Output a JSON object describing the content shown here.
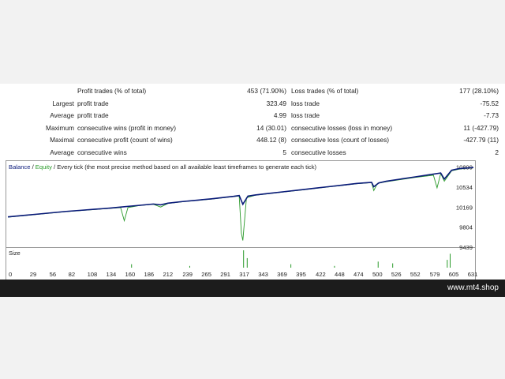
{
  "stats": {
    "rows": [
      {
        "c1": "",
        "c2": "Profit trades (% of total)",
        "c3": "453 (71.90%)",
        "c4": "Loss trades (% of total)",
        "c5": "177 (28.10%)"
      },
      {
        "c1": "Largest",
        "c2": "profit trade",
        "c3": "323.49",
        "c4": "loss trade",
        "c5": "-75.52"
      },
      {
        "c1": "Average",
        "c2": "profit trade",
        "c3": "4.99",
        "c4": "loss trade",
        "c5": "-7.73"
      },
      {
        "c1": "Maximum",
        "c2": "consecutive wins (profit in money)",
        "c3": "14 (30.01)",
        "c4": "consecutive losses (loss in money)",
        "c5": "11 (-427.79)"
      },
      {
        "c1": "Maximal",
        "c2": "consecutive profit (count of wins)",
        "c3": "448.12 (8)",
        "c4": "consecutive loss (count of losses)",
        "c5": "-427.79 (11)"
      },
      {
        "c1": "Average",
        "c2": "consecutive wins",
        "c3": "5",
        "c4": "consecutive losses",
        "c5": "2"
      }
    ]
  },
  "chart": {
    "legend_balance": "Balance",
    "legend_sep1": " / ",
    "legend_equity": "Equity",
    "legend_rest": " / Every tick (the most precise method based on all available least timeframes to generate each tick)",
    "size_label": "Size",
    "balance_color": "#0a1a7a",
    "equity_color": "#2a9a2a",
    "size_color": "#2a9a2a"
  },
  "chart_data": {
    "type": "line",
    "xlabel": "",
    "ylabel": "",
    "x_ticks": [
      0,
      29,
      56,
      82,
      108,
      134,
      160,
      186,
      212,
      239,
      265,
      291,
      317,
      343,
      369,
      395,
      422,
      448,
      474,
      500,
      526,
      552,
      579,
      605,
      631
    ],
    "y_ticks": [
      10899,
      10534,
      10169,
      9804,
      9439
    ],
    "xlim": [
      0,
      640
    ],
    "ylim": [
      9439,
      10950
    ],
    "series": [
      {
        "name": "Balance",
        "x": [
          0,
          20,
          40,
          60,
          80,
          100,
          120,
          140,
          160,
          180,
          200,
          210,
          220,
          240,
          260,
          280,
          300,
          310,
          318,
          323,
          330,
          340,
          360,
          380,
          400,
          420,
          440,
          460,
          480,
          500,
          503,
          510,
          520,
          540,
          560,
          580,
          595,
          600,
          610,
          620,
          630,
          640
        ],
        "y": [
          9990,
          10015,
          10040,
          10065,
          10090,
          10110,
          10130,
          10150,
          10175,
          10200,
          10225,
          10210,
          10240,
          10270,
          10295,
          10320,
          10350,
          10365,
          10380,
          10220,
          10370,
          10390,
          10420,
          10450,
          10480,
          10510,
          10540,
          10570,
          10600,
          10620,
          10540,
          10610,
          10640,
          10680,
          10720,
          10760,
          10790,
          10680,
          10840,
          10870,
          10880,
          10890
        ]
      },
      {
        "name": "Equity",
        "x": [
          0,
          20,
          40,
          60,
          80,
          100,
          120,
          140,
          155,
          160,
          165,
          180,
          200,
          210,
          220,
          240,
          260,
          280,
          300,
          310,
          318,
          321,
          323,
          328,
          340,
          360,
          380,
          400,
          420,
          440,
          460,
          480,
          500,
          503,
          508,
          520,
          540,
          560,
          585,
          590,
          595,
          600,
          610,
          620,
          630,
          640
        ],
        "y": [
          9985,
          10010,
          10035,
          10060,
          10085,
          10105,
          10125,
          10145,
          10160,
          9920,
          10160,
          10195,
          10220,
          10170,
          10235,
          10265,
          10290,
          10315,
          10345,
          10360,
          10370,
          9690,
          9560,
          10340,
          10385,
          10415,
          10445,
          10475,
          10505,
          10535,
          10565,
          10595,
          10615,
          10470,
          10600,
          10630,
          10670,
          10710,
          10750,
          10520,
          10780,
          10640,
          10830,
          10860,
          10875,
          10885
        ]
      },
      {
        "name": "Size",
        "x": [
          170,
          250,
          324,
          329,
          389,
          449,
          509,
          529,
          604,
          608
        ],
        "y": [
          0.2,
          0.1,
          1.0,
          0.55,
          0.2,
          0.1,
          0.35,
          0.25,
          0.45,
          0.8
        ]
      }
    ],
    "grid": false,
    "legend_position": "top-left"
  },
  "footer": {
    "site": "www.mt4.shop"
  }
}
